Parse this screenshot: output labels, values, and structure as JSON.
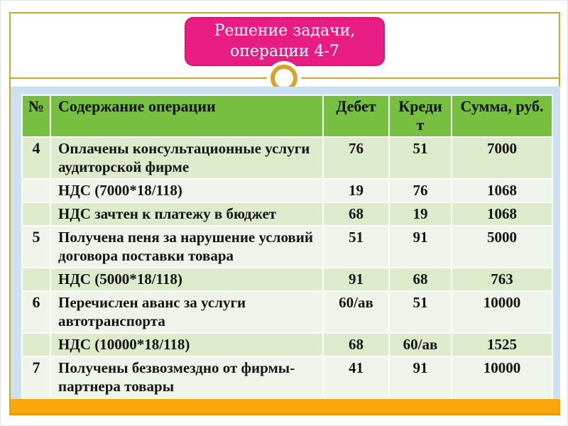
{
  "slide": {
    "title": "Решение задачи, операции 4-7"
  },
  "colors": {
    "title_box": "#e71d83",
    "frame_gold": "#d2a52b",
    "header_green": "#76bf40",
    "row_green": "#ddeacb",
    "row_pale": "#eff4ea",
    "panel_blue": "#cbe0f1",
    "footer_orange": "#f9a70d"
  },
  "table": {
    "headers": [
      "№",
      "Содержание операции",
      "Дебет",
      "Кредит",
      "Сумма, руб."
    ],
    "rows": [
      {
        "num": "4",
        "content": "Оплачены консультационные услуги аудиторской фирме",
        "debit": "76",
        "credit": "51",
        "amount": "7000"
      },
      {
        "num": "",
        "content": "НДС (7000*18/118)",
        "debit": "19",
        "credit": "76",
        "amount": "1068"
      },
      {
        "num": "",
        "content": "НДС зачтен к платежу в бюджет",
        "debit": "68",
        "credit": "19",
        "amount": "1068"
      },
      {
        "num": "5",
        "content": "Получена пеня за нарушение условий договора поставки товара",
        "debit": "51",
        "credit": "91",
        "amount": "5000"
      },
      {
        "num": "",
        "content": "НДС (5000*18/118)",
        "debit": "91",
        "credit": "68",
        "amount": "763"
      },
      {
        "num": "6",
        "content": "Перечислен аванс за услуги автотранспорта",
        "debit": "60/ав",
        "credit": "51",
        "amount": "10000"
      },
      {
        "num": "",
        "content": "НДС (10000*18/118)",
        "debit": "68",
        "credit": "60/ав",
        "amount": "1525"
      },
      {
        "num": "7",
        "content": "Получены безвозмездно от фирмы-партнера товары",
        "debit": "41",
        "credit": "91",
        "amount": "10000"
      }
    ]
  }
}
